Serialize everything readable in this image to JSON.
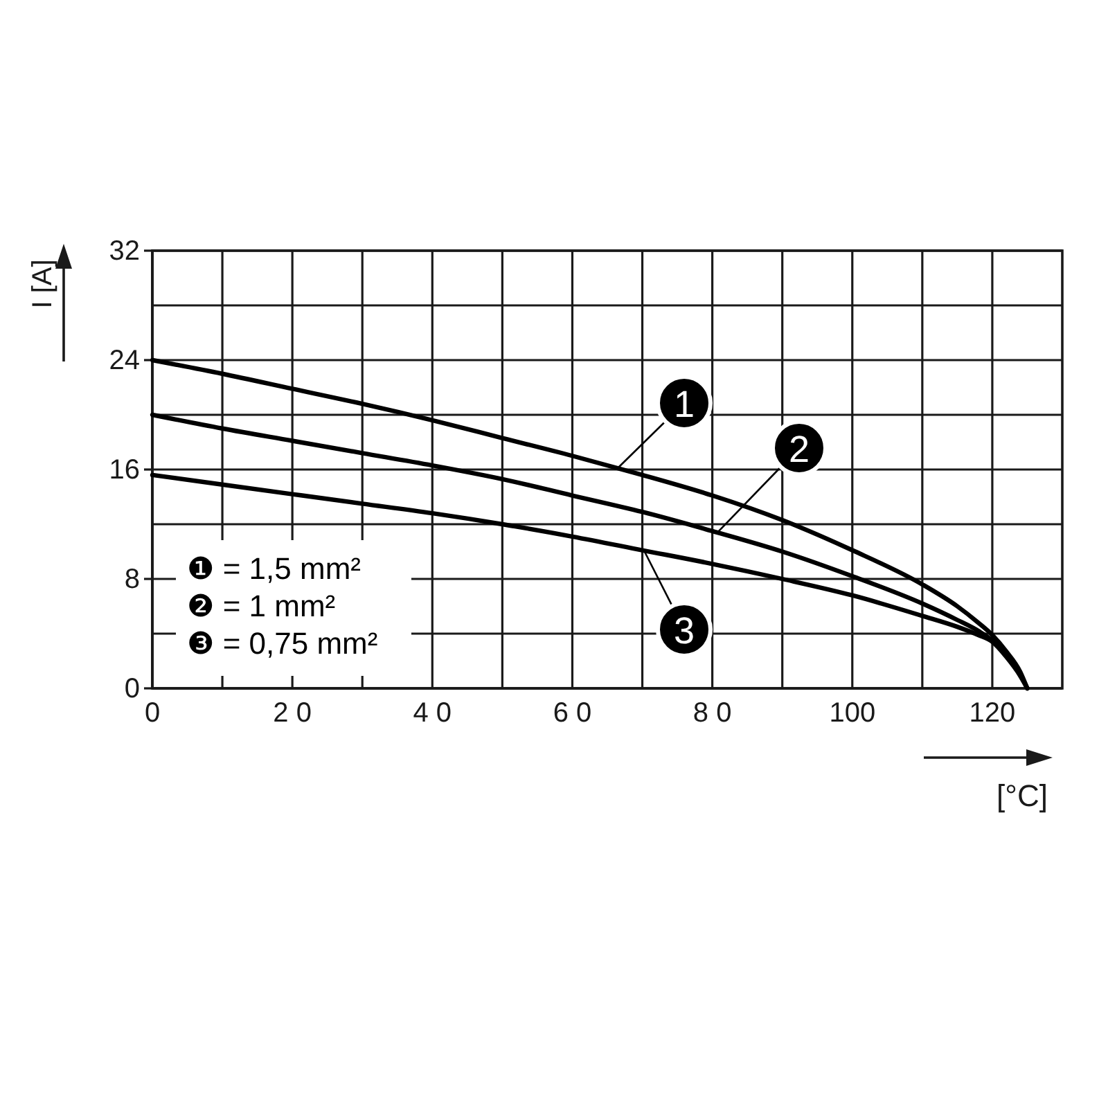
{
  "chart_data": {
    "type": "line",
    "xlabel": "[°C]",
    "ylabel": "I [A]",
    "xlim": [
      0,
      130
    ],
    "ylim": [
      0,
      32
    ],
    "xticks": [
      0,
      {
        "value": 10,
        "label": null
      },
      {
        "value": 20,
        "label": "2 0"
      },
      {
        "value": 30,
        "label": null
      },
      {
        "value": 40,
        "label": "4 0"
      },
      {
        "value": 50,
        "label": null
      },
      {
        "value": 60,
        "label": "6 0"
      },
      {
        "value": 70,
        "label": null
      },
      {
        "value": 80,
        "label": "8 0"
      },
      {
        "value": 90,
        "label": null
      },
      100,
      {
        "value": 110,
        "label": null
      },
      120
    ],
    "yticks": [
      0,
      {
        "value": 4,
        "label": null
      },
      8,
      {
        "value": 12,
        "label": null
      },
      16,
      {
        "value": 20,
        "label": null
      },
      24,
      {
        "value": 28,
        "label": null
      },
      32
    ],
    "grid": true,
    "x": [
      0,
      10,
      20,
      30,
      40,
      50,
      60,
      70,
      80,
      90,
      100,
      110,
      115,
      118,
      120,
      122,
      124,
      125
    ],
    "series": [
      {
        "name": "1",
        "color": "#000000",
        "values": [
          24.0,
          23.0,
          21.9,
          20.8,
          19.6,
          18.3,
          17.0,
          15.6,
          14.1,
          12.3,
          10.1,
          7.6,
          6.0,
          4.8,
          3.9,
          2.7,
          1.2,
          0
        ]
      },
      {
        "name": "2",
        "color": "#000000",
        "values": [
          20.0,
          19.0,
          18.1,
          17.2,
          16.3,
          15.3,
          14.1,
          12.9,
          11.5,
          10.0,
          8.2,
          6.2,
          5.0,
          4.2,
          3.5,
          2.4,
          1.0,
          0
        ]
      },
      {
        "name": "3",
        "color": "#000000",
        "values": [
          15.6,
          14.9,
          14.2,
          13.5,
          12.8,
          12.0,
          11.1,
          10.1,
          9.1,
          8.0,
          6.8,
          5.3,
          4.5,
          3.9,
          3.4,
          2.3,
          0.9,
          0
        ]
      }
    ],
    "annotations": [
      "❶ = 1,5 mm²",
      "❷ = 1 mm²",
      "❸ = 0,75 mm²"
    ]
  }
}
